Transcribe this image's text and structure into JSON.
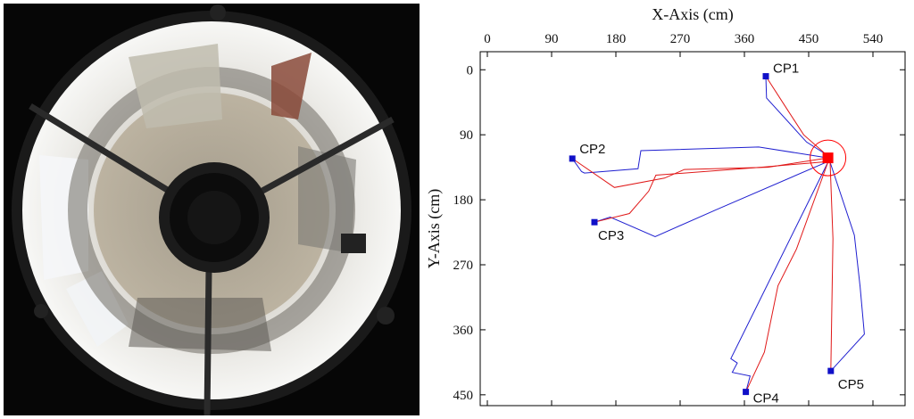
{
  "photo": {
    "description_icon": "fisheye-camera-image"
  },
  "chart_data": {
    "type": "line",
    "xlabel": "X-Axis (cm)",
    "ylabel": "Y-Axis (cm)",
    "xlim": [
      -10,
      585
    ],
    "ylim": [
      -25,
      465
    ],
    "x_ticks": [
      0,
      90,
      180,
      270,
      360,
      450,
      540
    ],
    "y_ticks": [
      0,
      90,
      180,
      270,
      360,
      450
    ],
    "x_axis_position": "top",
    "y_axis_inverted": true,
    "grid": false,
    "colors": {
      "blue": "#1f1fd0",
      "red": "#e01818",
      "marker_blue": "#1010c8",
      "target_red": "#ff0000"
    },
    "target": {
      "x": 477,
      "y": 122,
      "radius": 25
    },
    "checkpoints": [
      {
        "name": "CP1",
        "x": 390,
        "y": 9
      },
      {
        "name": "CP2",
        "x": 119,
        "y": 123
      },
      {
        "name": "CP3",
        "x": 150,
        "y": 211
      },
      {
        "name": "CP4",
        "x": 362,
        "y": 446
      },
      {
        "name": "CP5",
        "x": 481,
        "y": 417
      }
    ],
    "series": [
      {
        "color": "blue",
        "points": [
          [
            390,
            9
          ],
          [
            391,
            39
          ],
          [
            447,
            100
          ],
          [
            474,
            117
          ]
        ]
      },
      {
        "color": "red",
        "points": [
          [
            390,
            9
          ],
          [
            420,
            55
          ],
          [
            443,
            90
          ],
          [
            474,
            117
          ]
        ]
      },
      {
        "color": "blue",
        "points": [
          [
            119,
            123
          ],
          [
            132,
            141
          ],
          [
            136,
            143
          ],
          [
            211,
            137
          ],
          [
            215,
            112
          ],
          [
            380,
            107
          ],
          [
            477,
            122
          ]
        ]
      },
      {
        "color": "red",
        "points": [
          [
            119,
            123
          ],
          [
            178,
            163
          ],
          [
            248,
            150
          ],
          [
            276,
            138
          ],
          [
            393,
            135
          ],
          [
            477,
            122
          ]
        ]
      },
      {
        "color": "blue",
        "points": [
          [
            150,
            211
          ],
          [
            172,
            204
          ],
          [
            235,
            231
          ],
          [
            320,
            194
          ],
          [
            477,
            127
          ]
        ]
      },
      {
        "color": "red",
        "points": [
          [
            150,
            211
          ],
          [
            199,
            199
          ],
          [
            226,
            168
          ],
          [
            236,
            146
          ],
          [
            383,
            135
          ],
          [
            477,
            127
          ]
        ]
      },
      {
        "color": "blue",
        "points": [
          [
            362,
            446
          ],
          [
            368,
            424
          ],
          [
            343,
            419
          ],
          [
            350,
            406
          ],
          [
            341,
            400
          ],
          [
            477,
            128
          ]
        ]
      },
      {
        "color": "red",
        "points": [
          [
            362,
            446
          ],
          [
            388,
            391
          ],
          [
            407,
            299
          ],
          [
            433,
            248
          ],
          [
            477,
            128
          ]
        ]
      },
      {
        "color": "blue",
        "points": [
          [
            481,
            417
          ],
          [
            528,
            366
          ],
          [
            522,
            300
          ],
          [
            514,
            229
          ],
          [
            480,
            128
          ]
        ]
      },
      {
        "color": "red",
        "points": [
          [
            481,
            417
          ],
          [
            484,
            234
          ],
          [
            480,
            128
          ]
        ]
      }
    ]
  }
}
